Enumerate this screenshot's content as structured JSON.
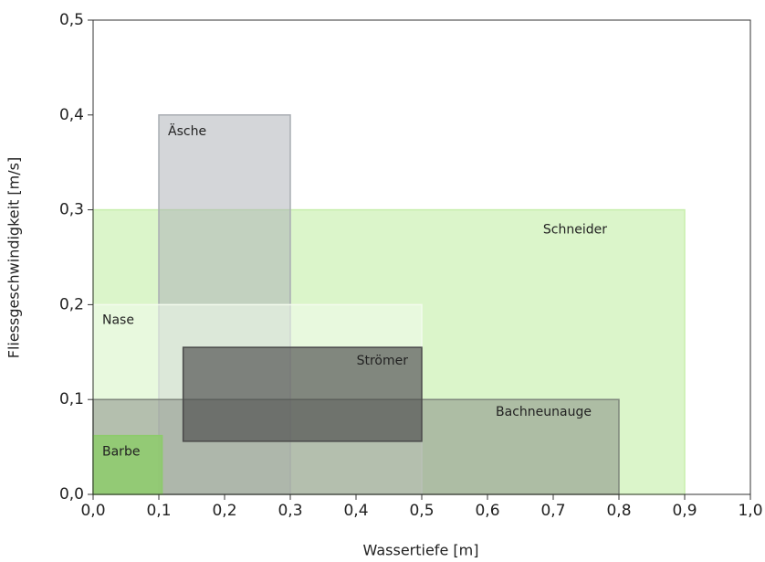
{
  "chart_data": {
    "type": "range-rect",
    "xlabel": "Wassertiefe [m]",
    "ylabel": "Fliessgeschwindigkeit [m/s]",
    "xlim": [
      0,
      1.0
    ],
    "ylim": [
      0,
      0.5
    ],
    "xticks": [
      {
        "value": 0,
        "label": "0,0"
      },
      {
        "value": 0.1,
        "label": "0,1"
      },
      {
        "value": 0.2,
        "label": "0,2"
      },
      {
        "value": 0.3,
        "label": "0,3"
      },
      {
        "value": 0.4,
        "label": "0,4"
      },
      {
        "value": 0.5,
        "label": "0,5"
      },
      {
        "value": 0.6,
        "label": "0,6"
      },
      {
        "value": 0.7,
        "label": "0,7"
      },
      {
        "value": 0.8,
        "label": "0,8"
      },
      {
        "value": 0.9,
        "label": "0,9"
      },
      {
        "value": 1.0,
        "label": "1,0"
      }
    ],
    "yticks": [
      {
        "value": 0,
        "label": "0,0"
      },
      {
        "value": 0.1,
        "label": "0,1"
      },
      {
        "value": 0.2,
        "label": "0,2"
      },
      {
        "value": 0.3,
        "label": "0,3"
      },
      {
        "value": 0.4,
        "label": "0,4"
      },
      {
        "value": 0.5,
        "label": "0,5"
      }
    ],
    "series": [
      {
        "name": "Schneider",
        "color": "#c8efad",
        "x": [
          0,
          0.9
        ],
        "y": [
          0,
          0.3
        ]
      },
      {
        "name": "Äsche",
        "color": "#a9adb3",
        "x": [
          0.1,
          0.3
        ],
        "y": [
          0,
          0.4
        ]
      },
      {
        "name": "Nase",
        "color": "#f3fbee",
        "x": [
          0,
          0.5
        ],
        "y": [
          0,
          0.2
        ]
      },
      {
        "name": "Bachneunauge",
        "color": "#7f867d",
        "x": [
          0,
          0.8
        ],
        "y": [
          0,
          0.1
        ]
      },
      {
        "name": "Strömer",
        "color": "#4a4a4a",
        "x": [
          0.137,
          0.5
        ],
        "y": [
          0.056,
          0.155
        ]
      },
      {
        "name": "Barbe",
        "color": "#8dcb6b",
        "x": [
          0,
          0.105
        ],
        "y": [
          0,
          0.062
        ]
      }
    ]
  }
}
